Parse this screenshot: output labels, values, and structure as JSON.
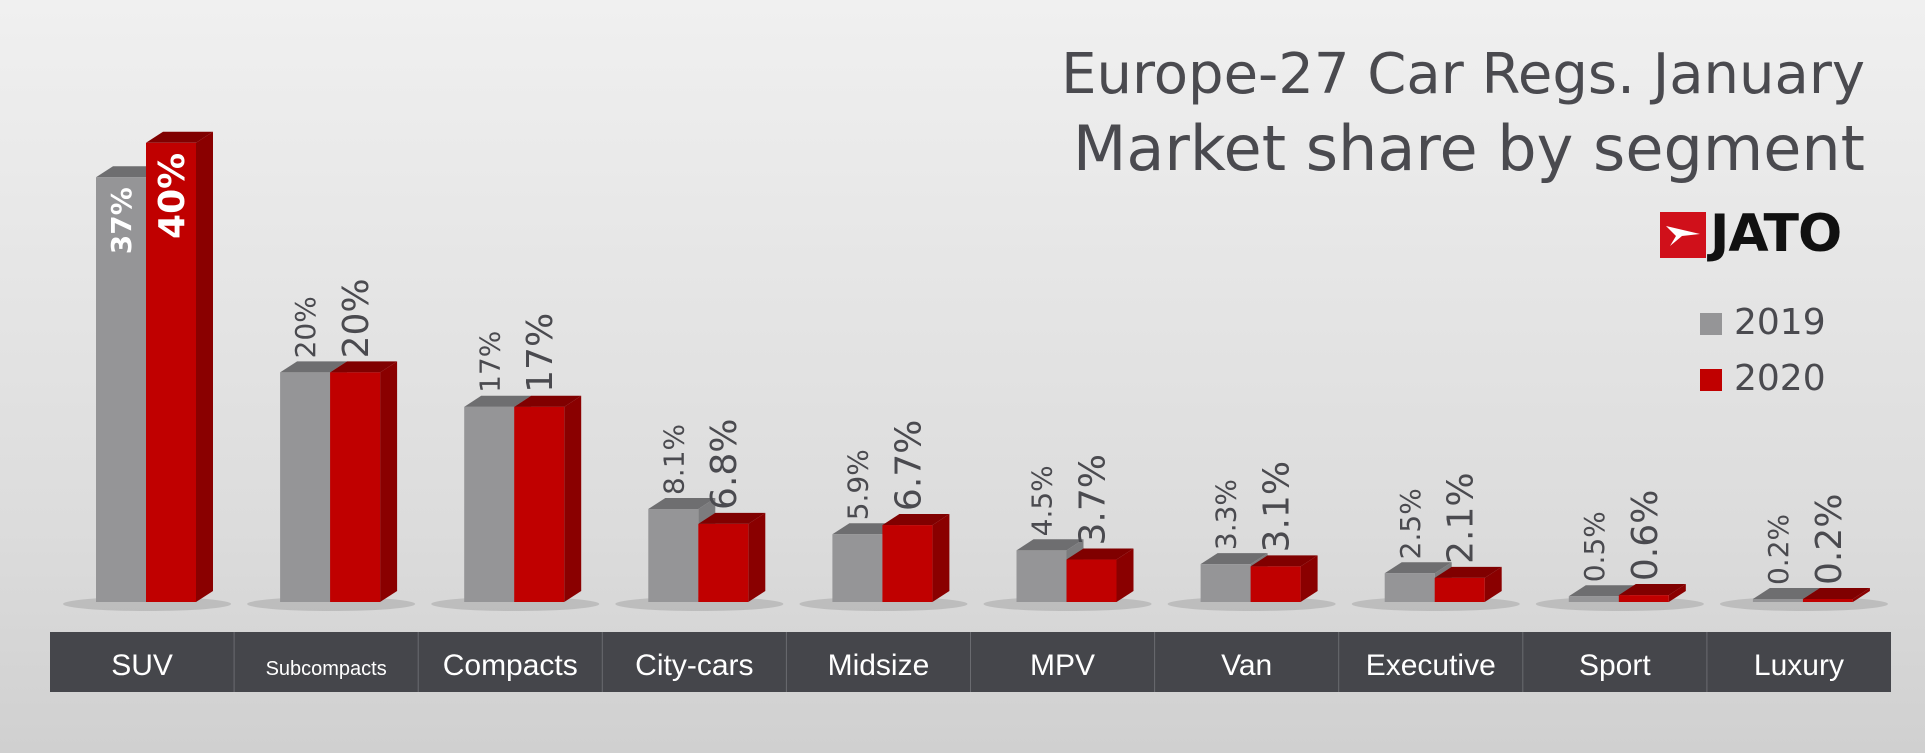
{
  "chart_data": {
    "type": "bar",
    "title": "Europe-27 Car Regs. January",
    "subtitle": "Market share by segment",
    "categories": [
      "SUV",
      "Subcompacts",
      "Compacts",
      "City-cars",
      "Midsize",
      "MPV",
      "Van",
      "Executive",
      "Sport",
      "Luxury"
    ],
    "series": [
      {
        "name": "2019",
        "values": [
          37,
          20,
          17,
          8.1,
          5.9,
          4.5,
          3.3,
          2.5,
          0.5,
          0.2
        ],
        "labels": [
          "37%",
          "20%",
          "17%",
          "8.1%",
          "5.9%",
          "4.5%",
          "3.3%",
          "2.5%",
          "0.5%",
          "0.2%"
        ],
        "color": "#959597"
      },
      {
        "name": "2020",
        "values": [
          40,
          20,
          17,
          6.8,
          6.7,
          3.7,
          3.1,
          2.1,
          0.6,
          0.2
        ],
        "labels": [
          "40%",
          "20%",
          "17%",
          "6.8%",
          "6.7%",
          "3.7%",
          "3.1%",
          "2.1%",
          "0.6%",
          "0.2%"
        ],
        "color": "#c00000"
      }
    ],
    "ylim": [
      0,
      42
    ],
    "grid": false,
    "legend": "right",
    "unit": "%"
  },
  "brand": {
    "logo_text": "JATO",
    "logo_color": "#d0101a"
  },
  "colors": {
    "category_band": "#45464b",
    "text": "#4a4a4f"
  }
}
